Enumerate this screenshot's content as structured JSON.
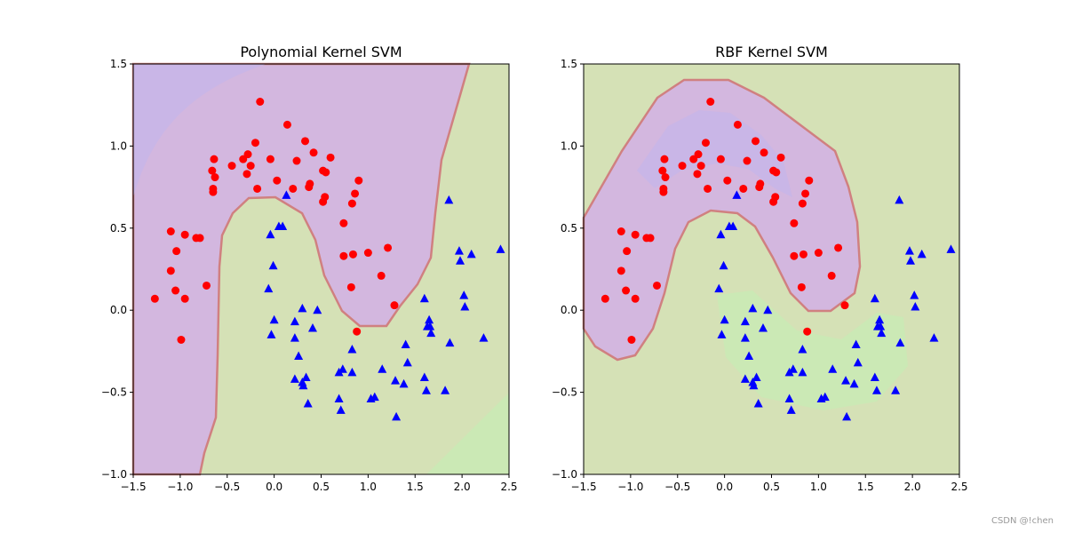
{
  "watermark": "CSDN @!chen",
  "chart_data": [
    {
      "type": "scatter",
      "title": "Polynomial Kernel SVM",
      "xlim": [
        -1.5,
        2.5
      ],
      "ylim": [
        -1.0,
        1.5
      ],
      "xticks": [
        "−1.5",
        "−1.0",
        "−0.5",
        "0.0",
        "0.5",
        "1.0",
        "1.5",
        "2.0",
        "2.5"
      ],
      "yticks": [
        "−1.0",
        "−0.5",
        "0.0",
        "0.5",
        "1.0",
        "1.5"
      ],
      "grid": false,
      "region_colors": {
        "class_0": "#d3b7df",
        "class_1": "#d5e1b6",
        "boundary": "#d08080"
      }
    },
    {
      "type": "scatter",
      "title": "RBF Kernel SVM",
      "xlim": [
        -1.5,
        2.5
      ],
      "ylim": [
        -1.0,
        1.5
      ],
      "xticks": [
        "−1.5",
        "−1.0",
        "−0.5",
        "0.0",
        "0.5",
        "1.0",
        "1.5",
        "2.0",
        "2.5"
      ],
      "yticks": [
        "−1.0",
        "−0.5",
        "0.0",
        "0.5",
        "1.0",
        "1.5"
      ],
      "grid": false,
      "region_colors": {
        "class_0": "#d3b7df",
        "class_1": "#d5e1b6",
        "boundary": "#d08080"
      }
    }
  ],
  "series": [
    {
      "marker": "circle",
      "color": "#ff0000",
      "points": [
        [
          -0.15,
          1.27
        ],
        [
          0.14,
          1.13
        ],
        [
          -0.2,
          1.02
        ],
        [
          0.33,
          1.03
        ],
        [
          -0.28,
          0.95
        ],
        [
          -0.33,
          0.92
        ],
        [
          -0.64,
          0.92
        ],
        [
          -0.25,
          0.88
        ],
        [
          -0.45,
          0.88
        ],
        [
          -0.04,
          0.92
        ],
        [
          0.24,
          0.91
        ],
        [
          0.42,
          0.96
        ],
        [
          0.6,
          0.93
        ],
        [
          0.52,
          0.85
        ],
        [
          0.55,
          0.84
        ],
        [
          -0.66,
          0.85
        ],
        [
          -0.63,
          0.81
        ],
        [
          -0.29,
          0.83
        ],
        [
          0.03,
          0.79
        ],
        [
          0.2,
          0.74
        ],
        [
          0.38,
          0.77
        ],
        [
          0.37,
          0.75
        ],
        [
          0.9,
          0.79
        ],
        [
          -0.18,
          0.74
        ],
        [
          -0.65,
          0.74
        ],
        [
          -0.65,
          0.72
        ],
        [
          0.54,
          0.69
        ],
        [
          0.52,
          0.66
        ],
        [
          0.86,
          0.71
        ],
        [
          0.83,
          0.65
        ],
        [
          0.74,
          0.53
        ],
        [
          -1.1,
          0.48
        ],
        [
          -0.95,
          0.46
        ],
        [
          -0.83,
          0.44
        ],
        [
          -0.79,
          0.44
        ],
        [
          -1.04,
          0.36
        ],
        [
          0.74,
          0.33
        ],
        [
          0.84,
          0.34
        ],
        [
          1.0,
          0.35
        ],
        [
          1.21,
          0.38
        ],
        [
          -1.1,
          0.24
        ],
        [
          1.14,
          0.21
        ],
        [
          -0.72,
          0.15
        ],
        [
          0.82,
          0.14
        ],
        [
          -1.05,
          0.12
        ],
        [
          -0.95,
          0.07
        ],
        [
          -1.27,
          0.07
        ],
        [
          1.28,
          0.03
        ],
        [
          0.88,
          -0.13
        ],
        [
          -0.99,
          -0.18
        ]
      ]
    },
    {
      "marker": "triangle",
      "color": "#0000ff",
      "points": [
        [
          0.13,
          0.7
        ],
        [
          0.05,
          0.51
        ],
        [
          0.09,
          0.51
        ],
        [
          -0.04,
          0.46
        ],
        [
          -0.01,
          0.27
        ],
        [
          -0.06,
          0.13
        ],
        [
          1.86,
          0.67
        ],
        [
          1.97,
          0.36
        ],
        [
          2.1,
          0.34
        ],
        [
          1.98,
          0.3
        ],
        [
          2.41,
          0.37
        ],
        [
          1.6,
          0.07
        ],
        [
          2.02,
          0.09
        ],
        [
          2.03,
          0.02
        ],
        [
          0.3,
          0.01
        ],
        [
          0.46,
          0.0
        ],
        [
          0.0,
          -0.06
        ],
        [
          0.22,
          -0.07
        ],
        [
          0.41,
          -0.11
        ],
        [
          -0.03,
          -0.15
        ],
        [
          0.22,
          -0.17
        ],
        [
          1.65,
          -0.06
        ],
        [
          1.63,
          -0.1
        ],
        [
          1.66,
          -0.1
        ],
        [
          1.67,
          -0.14
        ],
        [
          1.87,
          -0.2
        ],
        [
          2.23,
          -0.17
        ],
        [
          1.4,
          -0.21
        ],
        [
          0.26,
          -0.28
        ],
        [
          0.83,
          -0.24
        ],
        [
          0.22,
          -0.42
        ],
        [
          0.3,
          -0.44
        ],
        [
          0.34,
          -0.41
        ],
        [
          0.31,
          -0.46
        ],
        [
          0.73,
          -0.36
        ],
        [
          0.69,
          -0.38
        ],
        [
          0.83,
          -0.38
        ],
        [
          1.15,
          -0.36
        ],
        [
          1.42,
          -0.32
        ],
        [
          1.29,
          -0.43
        ],
        [
          1.38,
          -0.45
        ],
        [
          1.6,
          -0.41
        ],
        [
          1.62,
          -0.49
        ],
        [
          1.82,
          -0.49
        ],
        [
          0.36,
          -0.57
        ],
        [
          0.69,
          -0.54
        ],
        [
          0.71,
          -0.61
        ],
        [
          1.03,
          -0.54
        ],
        [
          1.07,
          -0.53
        ],
        [
          1.3,
          -0.65
        ]
      ]
    }
  ]
}
